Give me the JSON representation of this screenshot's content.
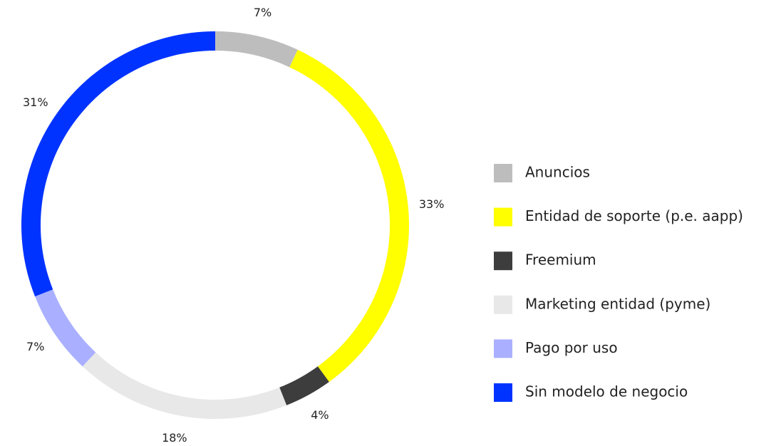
{
  "chart_data": {
    "type": "donut",
    "categories": [
      "Anuncios",
      "Entidad de soporte (p.e. aapp)",
      "Freemium",
      "Marketing entidad (pyme)",
      "Pago por uso",
      "Sin modelo de negocio"
    ],
    "values": [
      7,
      33,
      4,
      18,
      7,
      31
    ],
    "value_labels": [
      "7%",
      "33%",
      "4%",
      "18%",
      "7%",
      "31%"
    ],
    "colors": [
      "#bdbdbd",
      "#ffff00",
      "#3d3d3d",
      "#e8e8e8",
      "#aab0ff",
      "#0033ff"
    ],
    "legend": "right"
  }
}
